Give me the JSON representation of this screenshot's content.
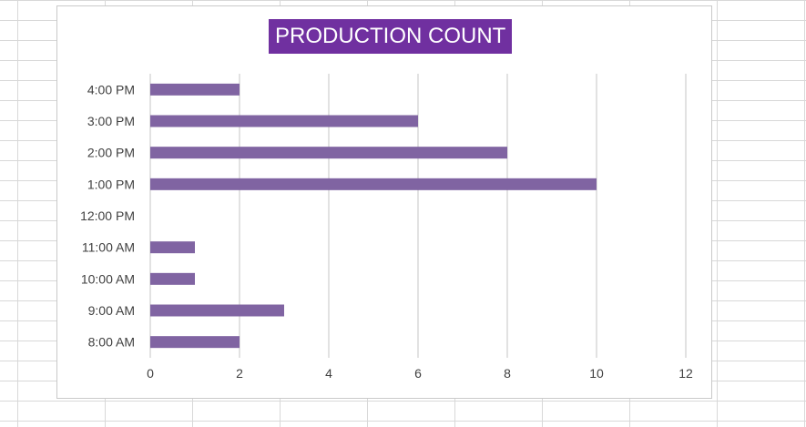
{
  "chart_data": {
    "type": "bar",
    "orientation": "horizontal",
    "title": "PRODUCTION COUNT",
    "categories": [
      "8:00 AM",
      "9:00 AM",
      "10:00 AM",
      "11:00 AM",
      "12:00 PM",
      "1:00 PM",
      "2:00 PM",
      "3:00 PM",
      "4:00 PM"
    ],
    "values": [
      2,
      3,
      1,
      1,
      0,
      10,
      8,
      6,
      2
    ],
    "xlim": [
      0,
      12
    ],
    "xticks": [
      0,
      2,
      4,
      6,
      8,
      10,
      12
    ],
    "xlabel": "",
    "ylabel": "",
    "grid": "vertical",
    "legend": "none"
  },
  "colors": {
    "bar": "#8064a2",
    "title_background": "#7030a0",
    "gridline": "#d9d9d9",
    "axis_text": "#404040"
  }
}
